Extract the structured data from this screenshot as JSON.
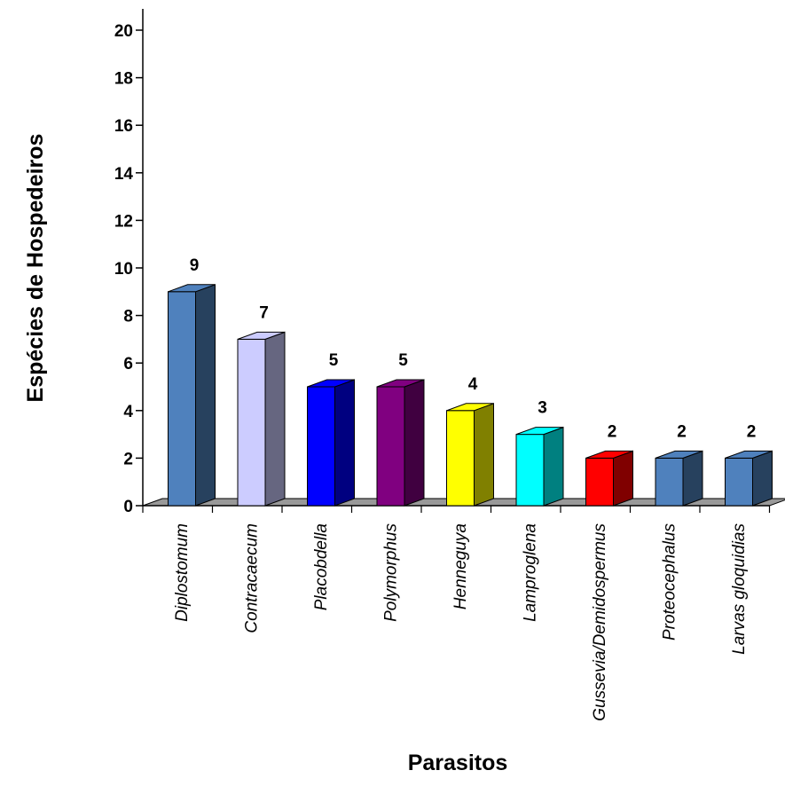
{
  "chart_data": {
    "type": "bar",
    "title": "",
    "xlabel": "Parasitos",
    "ylabel": "Espécies de Hospedeiros",
    "ylim": [
      0,
      21
    ],
    "yticks": [
      0,
      2,
      4,
      6,
      8,
      10,
      12,
      14,
      16,
      18,
      20
    ],
    "grid": false,
    "style": "3d-columns",
    "categories": [
      "Diplostomum",
      "Contracaecum",
      "Placobdella",
      "Polymorphus",
      "Henneguya",
      "Lamproglena",
      "Gussevia/Demidospermus",
      "Proteocephalus",
      "Larvas gloquidias"
    ],
    "values": [
      9,
      7,
      5,
      5,
      4,
      3,
      2,
      2,
      2
    ],
    "colors": [
      "#4F81BD",
      "#CCCCFF",
      "#0000FF",
      "#800080",
      "#FFFF00",
      "#00FFFF",
      "#FF0000",
      "#4F81BD",
      "#4F81BD"
    ],
    "side_colors": [
      "#27415E",
      "#666680",
      "#000080",
      "#400040",
      "#808000",
      "#008080",
      "#800000",
      "#27415E",
      "#27415E"
    ],
    "floor_color": "#999999"
  }
}
